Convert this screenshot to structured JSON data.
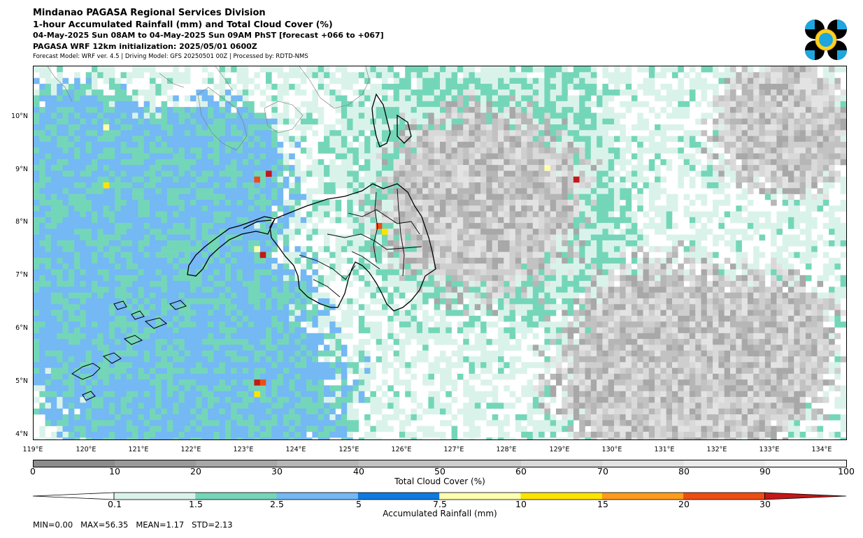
{
  "header": {
    "line1": "Mindanao PAGASA Regional Services Division",
    "line2": "1-hour Accumulated Rainfall (mm) and Total Cloud Cover (%)",
    "line3": "04-May-2025 Sun 08AM to 04-May-2025 Sun 09AM PhST [forecast +066 to +067]",
    "line4": "PAGASA WRF 12km initialization: 2025/05/01 0600Z",
    "line5": "Forecast Model: WRF ver. 4.5 | Driving Model: GFS 20250501 00Z | Processed by: RDTD-NMS"
  },
  "logo": {
    "icon": "pagasa-logo-icon",
    "colors": [
      "#000000",
      "#1ea6e0",
      "#ffd21f"
    ]
  },
  "map": {
    "lat_labels": [
      "10°N",
      "9°N",
      "8°N",
      "7°N",
      "6°N",
      "5°N",
      "4°N"
    ],
    "lon_labels": [
      "119°E",
      "120°E",
      "121°E",
      "122°E",
      "123°E",
      "124°E",
      "125°E",
      "126°E",
      "127°E",
      "128°E",
      "129°E",
      "130°E",
      "131°E",
      "132°E",
      "133°E",
      "134°E"
    ]
  },
  "cloud_colorbar": {
    "ticks": [
      "0",
      "10",
      "20",
      "30",
      "40",
      "50",
      "60",
      "70",
      "80",
      "90",
      "100"
    ],
    "title": "Total Cloud Cover (%)",
    "colors": [
      "#8c8c8c",
      "#9a9a9a",
      "#a8a8a8",
      "#b6b6b6",
      "#c2c2c2",
      "#cecece",
      "#d9d9d9",
      "#e3e3e3",
      "#ececec",
      "#f5f5f5"
    ]
  },
  "rain_colorbar": {
    "ticks": [
      "0.1",
      "1.5",
      "2.5",
      "5",
      "7.5",
      "10",
      "15",
      "20",
      "30"
    ],
    "title": "Accumulated Rainfall (mm)",
    "colors": [
      "#ffffff",
      "#daf3ea",
      "#74d6b8",
      "#74b8f4",
      "#0f7ae0",
      "#ffffb0",
      "#fde400",
      "#fd9b1d",
      "#ed4d12",
      "#c41717"
    ]
  },
  "stats": "MIN=0.00   MAX=56.35   MEAN=1.17   STD=2.13"
}
